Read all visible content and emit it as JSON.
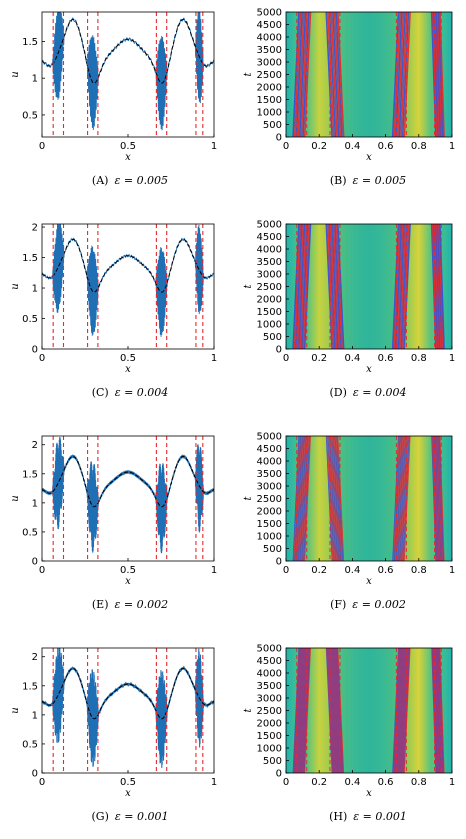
{
  "figure": {
    "panels": [
      {
        "id": "A",
        "caption_letter": "(A)",
        "caption_eq": "ε = 0.005",
        "kind": "line",
        "xlabel": "x",
        "ylabel": "u",
        "xticks": [
          "0",
          "0.5",
          "1"
        ],
        "yticks": [
          "0.5",
          "1",
          "1.5"
        ],
        "ylim": [
          0.2,
          1.9
        ],
        "eps": 0.005,
        "amp": 0.65
      },
      {
        "id": "B",
        "caption_letter": "(B)",
        "caption_eq": "ε = 0.005",
        "kind": "heat",
        "xlabel": "x",
        "ylabel": "t",
        "xticks": [
          "0",
          "0.2",
          "0.4",
          "0.6",
          "0.8",
          "1"
        ],
        "yticks": [
          "0",
          "500",
          "1000",
          "1500",
          "2000",
          "2500",
          "3000",
          "3500",
          "4000",
          "4500",
          "5000"
        ],
        "eps": 0.005
      },
      {
        "id": "C",
        "caption_letter": "(C)",
        "caption_eq": "ε = 0.004",
        "kind": "line",
        "xlabel": "x",
        "ylabel": "u",
        "xticks": [
          "0",
          "0.5",
          "1"
        ],
        "yticks": [
          "0",
          "0.5",
          "1",
          "1.5",
          "2"
        ],
        "ylim": [
          0,
          2.05
        ],
        "eps": 0.004,
        "amp": 0.75
      },
      {
        "id": "D",
        "caption_letter": "(D)",
        "caption_eq": "ε = 0.004",
        "kind": "heat",
        "xlabel": "x",
        "ylabel": "t",
        "xticks": [
          "0",
          "0.2",
          "0.4",
          "0.6",
          "0.8",
          "1"
        ],
        "yticks": [
          "0",
          "500",
          "1000",
          "1500",
          "2000",
          "2500",
          "3000",
          "3500",
          "4000",
          "4500",
          "5000"
        ],
        "eps": 0.004
      },
      {
        "id": "E",
        "caption_letter": "(E)",
        "caption_eq": "ε = 0.002",
        "kind": "line",
        "xlabel": "x",
        "ylabel": "u",
        "xticks": [
          "0",
          "0.5",
          "1"
        ],
        "yticks": [
          "0",
          "0.5",
          "1",
          "1.5",
          "2"
        ],
        "ylim": [
          0,
          2.15
        ],
        "eps": 0.002,
        "amp": 0.8
      },
      {
        "id": "F",
        "caption_letter": "(F)",
        "caption_eq": "ε = 0.002",
        "kind": "heat",
        "xlabel": "x",
        "ylabel": "t",
        "xticks": [
          "0",
          "0.2",
          "0.4",
          "0.6",
          "0.8",
          "1"
        ],
        "yticks": [
          "0",
          "500",
          "1000",
          "1500",
          "2000",
          "2500",
          "3000",
          "3500",
          "4000",
          "4500",
          "5000"
        ],
        "eps": 0.002
      },
      {
        "id": "G",
        "caption_letter": "(G)",
        "caption_eq": "ε = 0.001",
        "kind": "line",
        "xlabel": "x",
        "ylabel": "u",
        "xticks": [
          "0",
          "0.5",
          "1"
        ],
        "yticks": [
          "0",
          "0.5",
          "1",
          "1.5",
          "2"
        ],
        "ylim": [
          0,
          2.15
        ],
        "eps": 0.001,
        "amp": 0.85
      },
      {
        "id": "H",
        "caption_letter": "(H)",
        "caption_eq": "ε = 0.001",
        "kind": "heat",
        "xlabel": "x",
        "ylabel": "t",
        "xticks": [
          "0",
          "0.2",
          "0.4",
          "0.6",
          "0.8",
          "1"
        ],
        "yticks": [
          "0",
          "500",
          "1000",
          "1500",
          "2000",
          "2500",
          "3000",
          "3500",
          "4000",
          "4500",
          "5000"
        ],
        "eps": 0.001
      }
    ]
  },
  "chart_data": {
    "type": "line",
    "dashed_line_positions_x": [
      0.065,
      0.125,
      0.265,
      0.325,
      0.665,
      0.725,
      0.895,
      0.935
    ],
    "oscillation_bands_x": [
      [
        0.06,
        0.13
      ],
      [
        0.26,
        0.33
      ],
      [
        0.66,
        0.73
      ],
      [
        0.89,
        0.94
      ]
    ],
    "mean_curve": {
      "x_range": [
        0,
        1
      ],
      "y_start": 1.27,
      "y_peaks": [
        1.85,
        1.5,
        1.85
      ],
      "y_end": 1.29
    },
    "line_color": "#1f6fb4",
    "dashed_color": "#e8282d",
    "heat_colors": {
      "background": "#20b6a8",
      "yellow": "#d8d23a",
      "blue": "#3b4bd6",
      "red": "#e8282d"
    }
  }
}
